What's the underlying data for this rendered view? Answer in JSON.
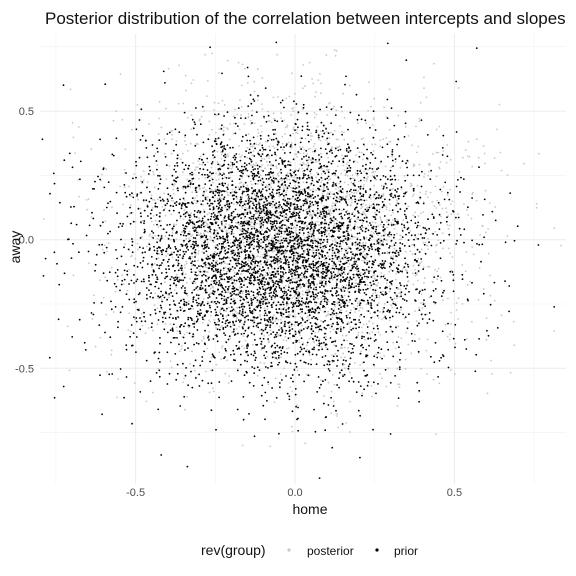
{
  "chart_data": {
    "type": "scatter",
    "title": "Posterior distribution of the correlation between intercepts and slopes",
    "xlabel": "home",
    "ylabel": "away",
    "xlim": [
      -0.8,
      0.85
    ],
    "ylim": [
      -0.95,
      0.8
    ],
    "x_ticks": [
      -0.5,
      0.0,
      0.5
    ],
    "x_tick_labels": [
      "-0.5",
      "0.0",
      "0.5"
    ],
    "y_ticks": [
      -0.5,
      0.0,
      0.5
    ],
    "y_tick_labels": [
      "-0.5",
      "0.0",
      "0.5"
    ],
    "grid": true,
    "legend": {
      "position": "bottom",
      "title": "rev(group)",
      "entries": [
        {
          "name": "posterior",
          "color": "#c8c8c8"
        },
        {
          "name": "prior",
          "color": "#000000"
        }
      ]
    },
    "series": [
      {
        "name": "posterior",
        "color": "#c8c8c8",
        "distribution": {
          "center": [
            0.0,
            0.0
          ],
          "sd": [
            0.26,
            0.26
          ],
          "n": 3000
        }
      },
      {
        "name": "prior",
        "color": "#000000",
        "distribution": {
          "center": [
            -0.05,
            -0.05
          ],
          "sd": [
            0.24,
            0.24
          ],
          "n": 5000
        }
      }
    ]
  }
}
